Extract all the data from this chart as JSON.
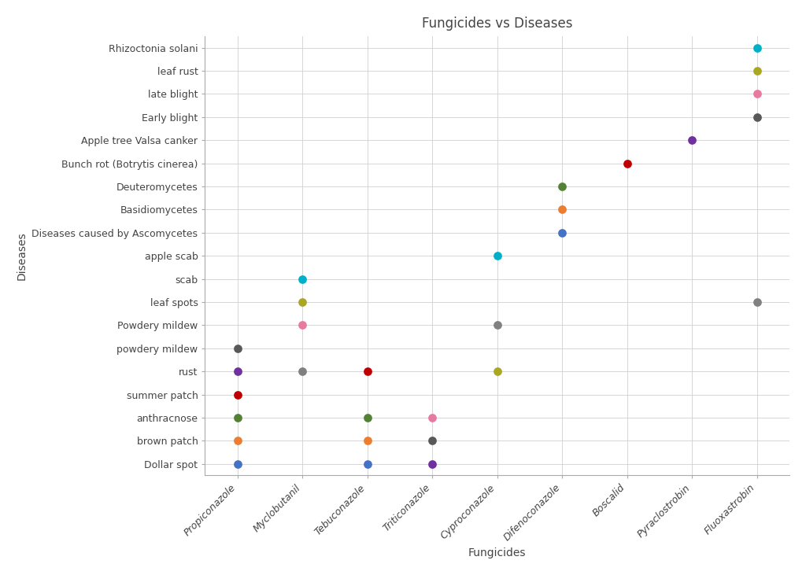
{
  "title": "Fungicides vs Diseases",
  "xlabel": "Fungicides",
  "ylabel": "Diseases",
  "fungicides": [
    "Propiconazole",
    "Myclobutanil",
    "Tebuconazole",
    "Triticonazole",
    "Cyproconazole",
    "Difenoconazole",
    "Boscalid",
    "Pyraclostrobin",
    "Fluoxastrobin"
  ],
  "diseases": [
    "Dollar spot",
    "brown patch",
    "anthracnose",
    "summer patch",
    "rust",
    "powdery mildew",
    "Powdery mildew",
    "leaf spots",
    "scab",
    "apple scab",
    "Diseases caused by Ascomycetes",
    "Basidiomycetes",
    "Deuteromycetes",
    "Bunch rot (Botrytis cinerea)",
    "Apple tree Valsa canker",
    "Early blight",
    "late blight",
    "leaf rust",
    "Rhizoctonia solani"
  ],
  "points": [
    {
      "fungicide": "Propiconazole",
      "disease": "Dollar spot",
      "color": "#4472c4"
    },
    {
      "fungicide": "Propiconazole",
      "disease": "brown patch",
      "color": "#ed7d31"
    },
    {
      "fungicide": "Propiconazole",
      "disease": "anthracnose",
      "color": "#548235"
    },
    {
      "fungicide": "Propiconazole",
      "disease": "summer patch",
      "color": "#c00000"
    },
    {
      "fungicide": "Propiconazole",
      "disease": "rust",
      "color": "#7030a0"
    },
    {
      "fungicide": "Propiconazole",
      "disease": "powdery mildew",
      "color": "#595959"
    },
    {
      "fungicide": "Myclobutanil",
      "disease": "rust",
      "color": "#808080"
    },
    {
      "fungicide": "Myclobutanil",
      "disease": "Powdery mildew",
      "color": "#e879a0"
    },
    {
      "fungicide": "Myclobutanil",
      "disease": "leaf spots",
      "color": "#a9a820"
    },
    {
      "fungicide": "Myclobutanil",
      "disease": "scab",
      "color": "#00b0c8"
    },
    {
      "fungicide": "Tebuconazole",
      "disease": "Dollar spot",
      "color": "#4472c4"
    },
    {
      "fungicide": "Tebuconazole",
      "disease": "anthracnose",
      "color": "#548235"
    },
    {
      "fungicide": "Tebuconazole",
      "disease": "brown patch",
      "color": "#ed7d31"
    },
    {
      "fungicide": "Tebuconazole",
      "disease": "rust",
      "color": "#c00000"
    },
    {
      "fungicide": "Triticonazole",
      "disease": "Dollar spot",
      "color": "#7030a0"
    },
    {
      "fungicide": "Triticonazole",
      "disease": "brown patch",
      "color": "#595959"
    },
    {
      "fungicide": "Triticonazole",
      "disease": "anthracnose",
      "color": "#e879a0"
    },
    {
      "fungicide": "Cyproconazole",
      "disease": "apple scab",
      "color": "#00b0c8"
    },
    {
      "fungicide": "Cyproconazole",
      "disease": "Powdery mildew",
      "color": "#808080"
    },
    {
      "fungicide": "Cyproconazole",
      "disease": "rust",
      "color": "#a9a820"
    },
    {
      "fungicide": "Difenoconazole",
      "disease": "Diseases caused by Ascomycetes",
      "color": "#4472c4"
    },
    {
      "fungicide": "Difenoconazole",
      "disease": "Basidiomycetes",
      "color": "#ed7d31"
    },
    {
      "fungicide": "Difenoconazole",
      "disease": "Deuteromycetes",
      "color": "#548235"
    },
    {
      "fungicide": "Boscalid",
      "disease": "Bunch rot (Botrytis cinerea)",
      "color": "#c00000"
    },
    {
      "fungicide": "Pyraclostrobin",
      "disease": "Apple tree Valsa canker",
      "color": "#7030a0"
    },
    {
      "fungicide": "Fluoxastrobin",
      "disease": "Early blight",
      "color": "#595959"
    },
    {
      "fungicide": "Fluoxastrobin",
      "disease": "late blight",
      "color": "#e879a0"
    },
    {
      "fungicide": "Fluoxastrobin",
      "disease": "leaf rust",
      "color": "#a9a820"
    },
    {
      "fungicide": "Fluoxastrobin",
      "disease": "Rhizoctonia solani",
      "color": "#00b0c8"
    },
    {
      "fungicide": "Fluoxastrobin",
      "disease": "leaf spots",
      "color": "#808080"
    }
  ],
  "background_color": "#ffffff",
  "grid_color": "#d0d0d0",
  "marker_size": 60,
  "title_fontsize": 12,
  "label_fontsize": 10,
  "tick_fontsize": 9
}
